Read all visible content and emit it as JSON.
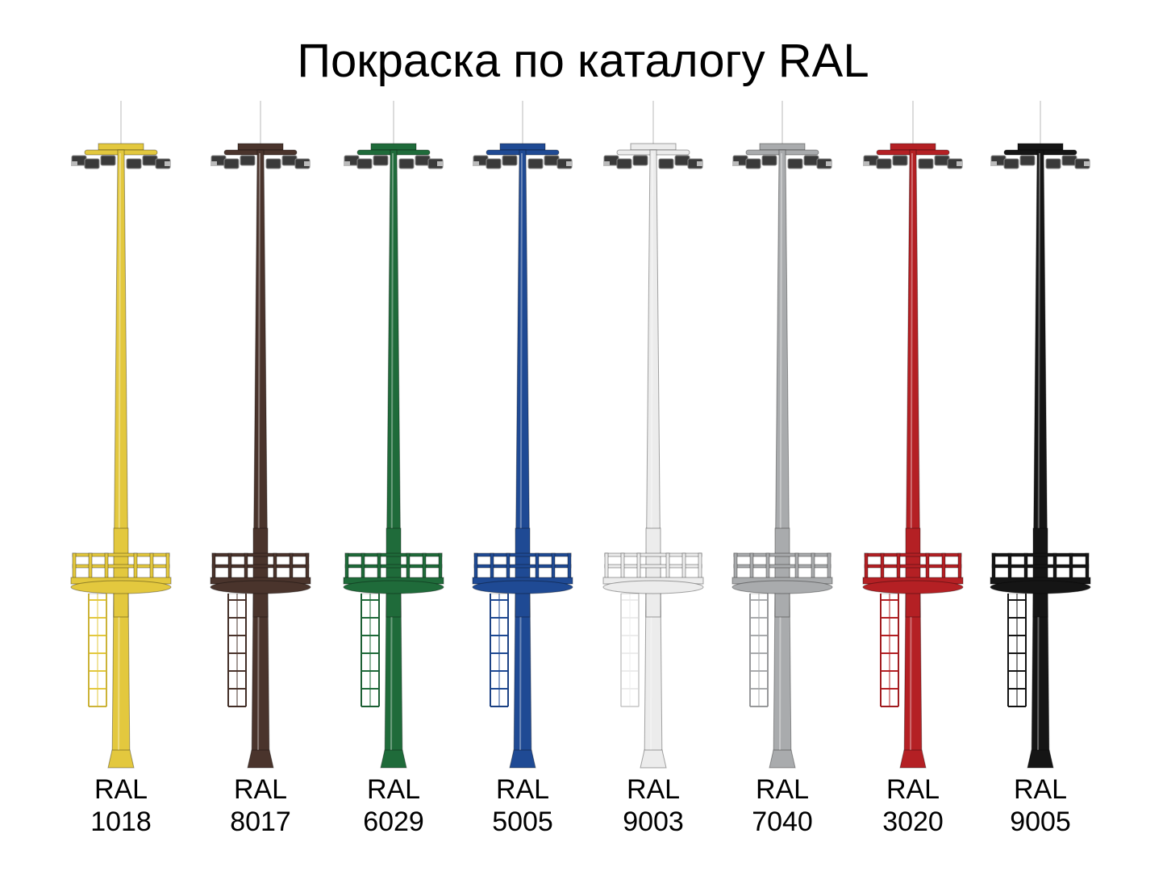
{
  "title": "Покраска по каталогу RAL",
  "items": [
    {
      "label": "RAL",
      "code": "1018",
      "color": "#e3c83e"
    },
    {
      "label": "RAL",
      "code": "8017",
      "color": "#4a342c"
    },
    {
      "label": "RAL",
      "code": "6029",
      "color": "#1f6b3a"
    },
    {
      "label": "RAL",
      "code": "5005",
      "color": "#1f4a94"
    },
    {
      "label": "RAL",
      "code": "9003",
      "color": "#ececec"
    },
    {
      "label": "RAL",
      "code": "7040",
      "color": "#a9abad"
    },
    {
      "label": "RAL",
      "code": "3020",
      "color": "#b42024"
    },
    {
      "label": "RAL",
      "code": "9005",
      "color": "#151515"
    }
  ]
}
